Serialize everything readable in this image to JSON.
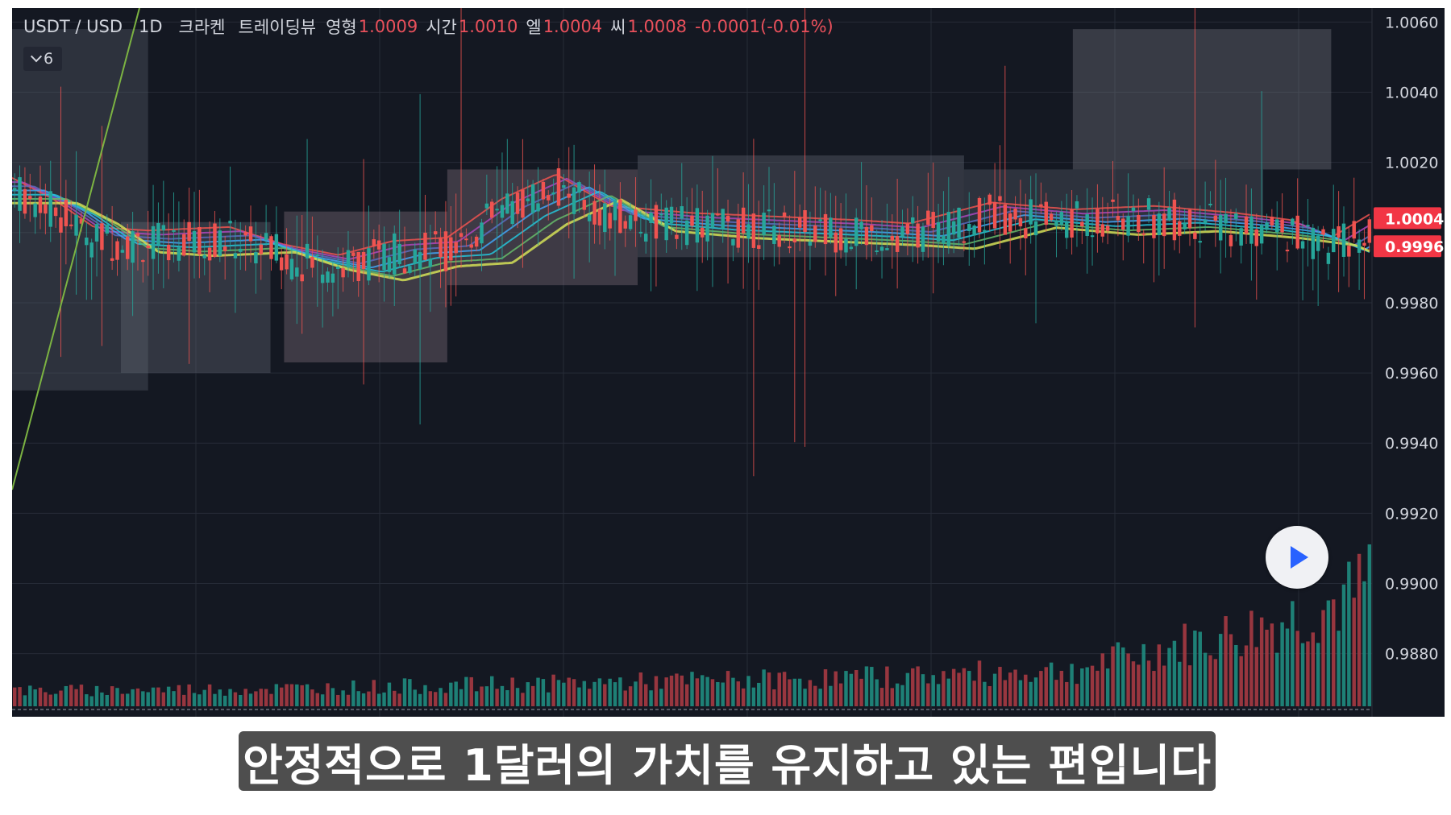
{
  "legend": {
    "symbol": "USDT / USD",
    "interval": "1D",
    "exchange": "크라켄",
    "source": "트레이딩뷰",
    "open_label": "영형",
    "open_value": "1.0009",
    "high_label": "시간",
    "high_value": "1.0010",
    "low_label": "엘",
    "low_value": "1.0004",
    "close_label": "씨",
    "close_value": "1.0008",
    "change": "-0.0001(-0.01%)"
  },
  "indicator_toggle": {
    "count": "6",
    "icon": "chevron-down-icon"
  },
  "play_button": {
    "icon": "play-icon"
  },
  "subtitle": "안정적으로 1달러의 가치를 유지하고 있는 편입니다",
  "colors": {
    "background": "#141822",
    "grid": "#262b37",
    "up": "#26a69a",
    "down": "#ef5350",
    "price_tag": "#f23645",
    "text": "#d1d4dc"
  },
  "chart_data": {
    "type": "candlestick",
    "y_axis": {
      "ticks": [
        "1.0060",
        "1.0040",
        "1.0020",
        "0.9980",
        "0.9960",
        "0.9940",
        "0.9920",
        "0.9900",
        "0.9880"
      ],
      "range": [
        0.9862,
        1.0064
      ],
      "side": "right"
    },
    "price_labels": [
      {
        "value": "1.0004",
        "price": 1.0004
      },
      {
        "value": "0.9996",
        "price": 0.9996
      }
    ],
    "price_trend": [
      [
        0,
        1.0012
      ],
      [
        0.03,
        1.0006
      ],
      [
        0.06,
        0.9998
      ],
      [
        0.1,
        0.9997
      ],
      [
        0.16,
        0.9998
      ],
      [
        0.2,
        0.9993
      ],
      [
        0.24,
        0.999
      ],
      [
        0.28,
        0.9994
      ],
      [
        0.32,
        0.9995
      ],
      [
        0.36,
        1.0006
      ],
      [
        0.4,
        1.0013
      ],
      [
        0.44,
        1.0004
      ],
      [
        0.5,
        1.0002
      ],
      [
        0.56,
        1.0001
      ],
      [
        0.62,
        1.0
      ],
      [
        0.66,
        0.9999
      ],
      [
        0.72,
        1.0005
      ],
      [
        0.78,
        1.0003
      ],
      [
        0.84,
        1.0004
      ],
      [
        0.9,
        1.0002
      ],
      [
        0.94,
        1.0
      ],
      [
        0.97,
        0.9995
      ],
      [
        1.0,
        1.0002
      ]
    ],
    "volume": {
      "scale": "relative",
      "levels": [
        [
          0,
          0.12
        ],
        [
          0.2,
          0.14
        ],
        [
          0.4,
          0.18
        ],
        [
          0.6,
          0.22
        ],
        [
          0.78,
          0.28
        ],
        [
          0.85,
          0.45
        ],
        [
          0.9,
          0.55
        ],
        [
          0.95,
          0.7
        ],
        [
          0.99,
          0.85
        ],
        [
          1.0,
          1.0
        ]
      ]
    }
  }
}
